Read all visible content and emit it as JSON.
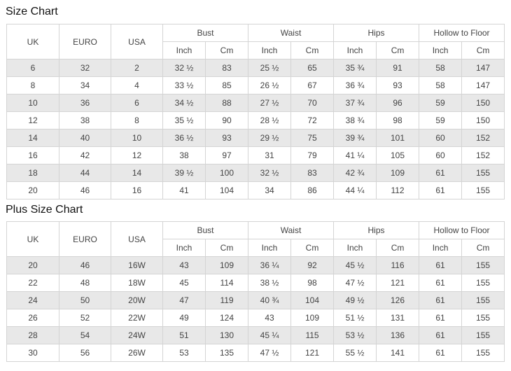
{
  "size_chart": {
    "title": "Size Chart",
    "headers": {
      "uk": "UK",
      "euro": "EURO",
      "usa": "USA",
      "groups": [
        "Bust",
        "Waist",
        "Hips",
        "Hollow to Floor"
      ],
      "inch": "Inch",
      "cm": "Cm"
    },
    "rows": [
      [
        "6",
        "32",
        "2",
        "32 ½",
        "83",
        "25 ½",
        "65",
        "35 ¾",
        "91",
        "58",
        "147"
      ],
      [
        "8",
        "34",
        "4",
        "33 ½",
        "85",
        "26 ½",
        "67",
        "36 ¾",
        "93",
        "58",
        "147"
      ],
      [
        "10",
        "36",
        "6",
        "34 ½",
        "88",
        "27 ½",
        "70",
        "37 ¾",
        "96",
        "59",
        "150"
      ],
      [
        "12",
        "38",
        "8",
        "35 ½",
        "90",
        "28 ½",
        "72",
        "38 ¾",
        "98",
        "59",
        "150"
      ],
      [
        "14",
        "40",
        "10",
        "36 ½",
        "93",
        "29 ½",
        "75",
        "39 ¾",
        "101",
        "60",
        "152"
      ],
      [
        "16",
        "42",
        "12",
        "38",
        "97",
        "31",
        "79",
        "41 ¼",
        "105",
        "60",
        "152"
      ],
      [
        "18",
        "44",
        "14",
        "39 ½",
        "100",
        "32 ½",
        "83",
        "42 ¾",
        "109",
        "61",
        "155"
      ],
      [
        "20",
        "46",
        "16",
        "41",
        "104",
        "34",
        "86",
        "44 ¼",
        "112",
        "61",
        "155"
      ]
    ]
  },
  "plus_size_chart": {
    "title": "Plus Size Chart",
    "headers": {
      "uk": "UK",
      "euro": "EURO",
      "usa": "USA",
      "groups": [
        "Bust",
        "Waist",
        "Hips",
        "Hollow to Floor"
      ],
      "inch": "Inch",
      "cm": "Cm"
    },
    "rows": [
      [
        "20",
        "46",
        "16W",
        "43",
        "109",
        "36 ¼",
        "92",
        "45 ½",
        "116",
        "61",
        "155"
      ],
      [
        "22",
        "48",
        "18W",
        "45",
        "114",
        "38 ½",
        "98",
        "47 ½",
        "121",
        "61",
        "155"
      ],
      [
        "24",
        "50",
        "20W",
        "47",
        "119",
        "40 ¾",
        "104",
        "49 ½",
        "126",
        "61",
        "155"
      ],
      [
        "26",
        "52",
        "22W",
        "49",
        "124",
        "43",
        "109",
        "51 ½",
        "131",
        "61",
        "155"
      ],
      [
        "28",
        "54",
        "24W",
        "51",
        "130",
        "45 ¼",
        "115",
        "53 ½",
        "136",
        "61",
        "155"
      ],
      [
        "30",
        "56",
        "26W",
        "53",
        "135",
        "47 ½",
        "121",
        "55 ½",
        "141",
        "61",
        "155"
      ]
    ]
  }
}
